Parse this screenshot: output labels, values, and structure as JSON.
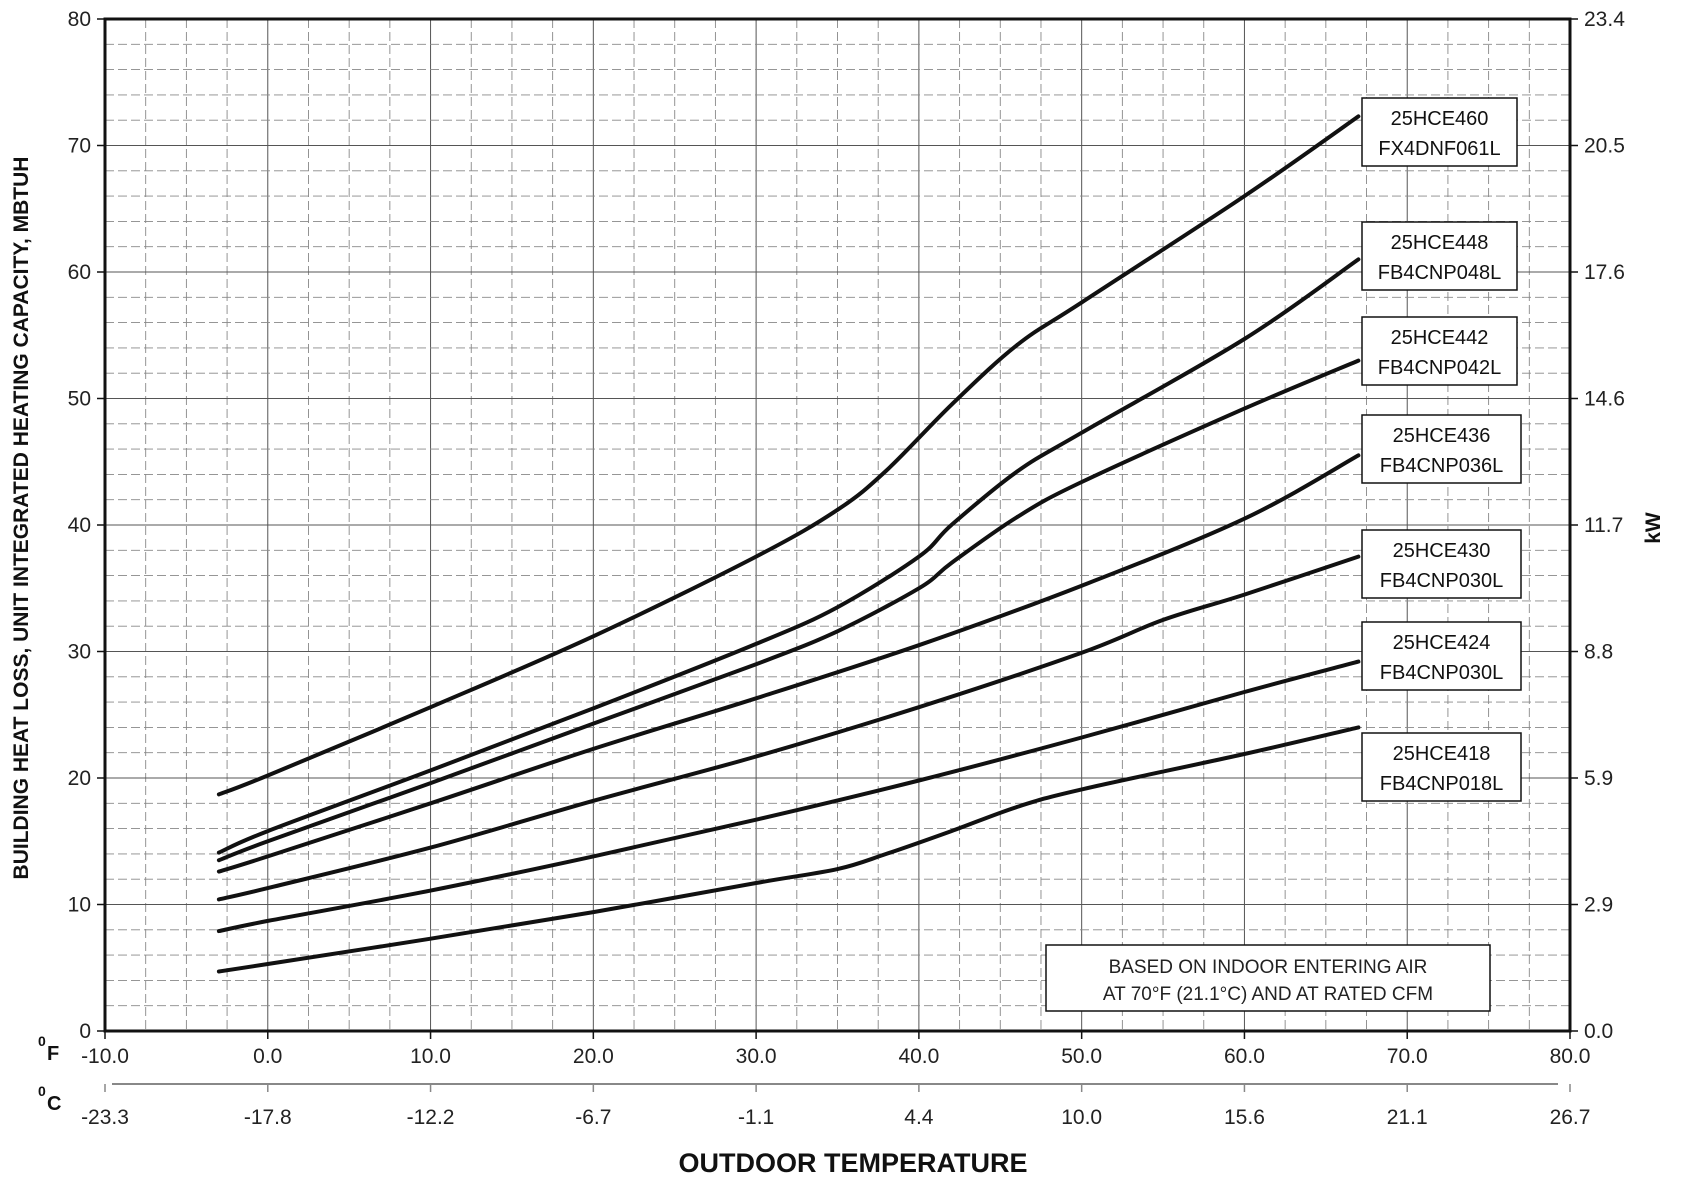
{
  "chart_data": {
    "type": "line",
    "ylabel": "BUILDING HEAT LOSS, UNIT INTEGRATED HEATING CAPACITY, MBTUH",
    "y2label": "kW",
    "xlabel": "OUTDOOR TEMPERATURE",
    "ylim": [
      0,
      80
    ],
    "xlim": [
      -10,
      80
    ],
    "y_ticks": [
      "0",
      "10",
      "20",
      "30",
      "40",
      "50",
      "60",
      "70",
      "80"
    ],
    "y2_ticks": [
      "0.0",
      "2.9",
      "5.9",
      "8.8",
      "11.7",
      "14.6",
      "17.6",
      "20.5",
      "23.4"
    ],
    "x_unit_f": "0F",
    "x_unit_c": "0C",
    "x_ticks_f": [
      "-10.0",
      "0.0",
      "10.0",
      "20.0",
      "30.0",
      "40.0",
      "50.0",
      "60.0",
      "70.0",
      "80.0"
    ],
    "x_ticks_c": [
      "-23.3",
      "-17.8",
      "-12.2",
      "-6.7",
      "-1.1",
      "4.4",
      "10.0",
      "15.6",
      "21.1",
      "26.7"
    ],
    "grid": true,
    "note": [
      "BASED ON INDOOR ENTERING AIR",
      "AT 70°F (21.1°C) AND AT RATED CFM"
    ],
    "series": [
      {
        "name": "25HCE460 FX4DNF061L",
        "label_lines": [
          "25HCE460",
          "FX4DNF061L"
        ],
        "x": [
          -3,
          0,
          10,
          20,
          30,
          35,
          38,
          42,
          46,
          50,
          60,
          67
        ],
        "y": [
          18.7,
          20.2,
          25.6,
          31.2,
          37.5,
          41.2,
          44.3,
          49.5,
          54.2,
          57.6,
          66.0,
          72.3
        ]
      },
      {
        "name": "25HCE448 FB4CNP048L",
        "label_lines": [
          "25HCE448",
          "FB4CNP048L"
        ],
        "x": [
          -3,
          0,
          10,
          20,
          30,
          35,
          40,
          42,
          46,
          50,
          60,
          67
        ],
        "y": [
          14.1,
          15.8,
          20.6,
          25.5,
          30.6,
          33.5,
          37.5,
          40.0,
          44.2,
          47.3,
          54.7,
          61.0
        ]
      },
      {
        "name": "25HCE442 FB4CNP042L",
        "label_lines": [
          "25HCE442",
          "FB4CNP042L"
        ],
        "x": [
          -3,
          0,
          10,
          20,
          30,
          35,
          40,
          42,
          46,
          50,
          60,
          67
        ],
        "y": [
          13.5,
          15.0,
          19.6,
          24.3,
          29.0,
          31.6,
          35.0,
          37.0,
          40.6,
          43.4,
          49.2,
          53.0
        ]
      },
      {
        "name": "25HCE436 FB4CNP036L",
        "label_lines": [
          "25HCE436",
          "FB4CNP036L"
        ],
        "x": [
          -3,
          0,
          10,
          20,
          30,
          40,
          50,
          60,
          67
        ],
        "y": [
          12.6,
          13.8,
          18.0,
          22.3,
          26.3,
          30.5,
          35.2,
          40.5,
          45.5
        ]
      },
      {
        "name": "25HCE430 FB4CNP030L",
        "label_lines": [
          "25HCE430",
          "FB4CNP030L"
        ],
        "x": [
          -3,
          0,
          10,
          20,
          30,
          40,
          50,
          55,
          60,
          67
        ],
        "y": [
          10.4,
          11.3,
          14.5,
          18.2,
          21.7,
          25.6,
          29.9,
          32.5,
          34.5,
          37.5
        ]
      },
      {
        "name": "25HCE424 FB4CNP030L",
        "label_lines": [
          "25HCE424",
          "FB4CNP030L"
        ],
        "x": [
          -3,
          0,
          10,
          20,
          30,
          40,
          50,
          60,
          67
        ],
        "y": [
          7.9,
          8.7,
          11.1,
          13.8,
          16.7,
          19.8,
          23.2,
          26.8,
          29.2
        ]
      },
      {
        "name": "25HCE418 FB4CNP018L",
        "label_lines": [
          "25HCE418",
          "FB4CNP018L"
        ],
        "x": [
          -3,
          0,
          10,
          20,
          30,
          35,
          38,
          42,
          46,
          50,
          60,
          67
        ],
        "y": [
          4.7,
          5.3,
          7.3,
          9.4,
          11.7,
          12.8,
          14.0,
          15.8,
          17.7,
          19.1,
          21.9,
          24.0
        ]
      }
    ]
  }
}
